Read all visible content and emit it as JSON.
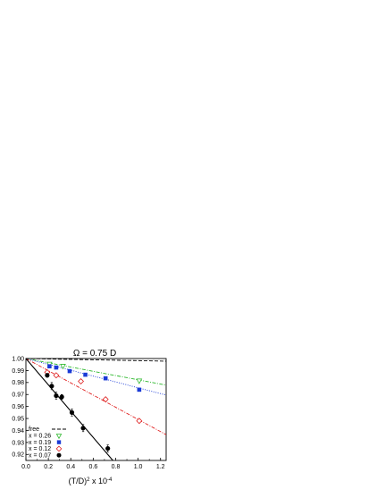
{
  "chart_data": {
    "type": "scatter",
    "title": "Ω = 0.75 D",
    "xlabel": "(T/D)",
    "xlabel_superscript": "2",
    "xlabel_suffix": " x 10",
    "xlabel_suffix_superscript": "-4",
    "ylabel": "",
    "xlim": [
      0.0,
      1.25
    ],
    "ylim": [
      0.915,
      1.0
    ],
    "x_ticks": [
      "0.0",
      "0.2",
      "0.4",
      "0.6",
      "0.8",
      "1.0",
      "1.2"
    ],
    "x_tick_values": [
      0.0,
      0.2,
      0.4,
      0.6,
      0.8,
      1.0,
      1.2
    ],
    "y_ticks": [
      "1.00",
      "0.99",
      "0.98",
      "0.97",
      "0.96",
      "0.95",
      "0.94",
      "0.93",
      "0.92"
    ],
    "y_tick_values": [
      1.0,
      0.99,
      0.98,
      0.97,
      0.96,
      0.95,
      0.94,
      0.93,
      0.92
    ],
    "grid": false,
    "legend_position": "bottom-left",
    "series": [
      {
        "name": "free",
        "marker": "none",
        "color": "#000000",
        "line_style": "dashed",
        "fit": [
          [
            0.0,
            1.0
          ],
          [
            1.25,
            0.9978
          ]
        ],
        "points": []
      },
      {
        "name": "x = 0.26",
        "marker": "triangle-down-open",
        "color": "#2db82d",
        "line_style": "dashdot",
        "fit": [
          [
            0.0,
            1.0
          ],
          [
            1.25,
            0.9778
          ]
        ],
        "points": [
          {
            "x": 0.21,
            "y": 0.9955,
            "err": 0.0008
          },
          {
            "x": 0.33,
            "y": 0.9938,
            "err": 0.0008
          },
          {
            "x": 1.01,
            "y": 0.9815,
            "err": 0.0008
          }
        ]
      },
      {
        "name": "x = 0.19",
        "marker": "square-filled",
        "color": "#1a3ad6",
        "line_style": "dotted",
        "fit": [
          [
            0.0,
            1.0
          ],
          [
            1.25,
            0.9695
          ]
        ],
        "points": [
          {
            "x": 0.21,
            "y": 0.9935,
            "err": 0.0008
          },
          {
            "x": 0.27,
            "y": 0.9925,
            "err": 0.0008
          },
          {
            "x": 0.39,
            "y": 0.9895,
            "err": 0.0008
          },
          {
            "x": 0.53,
            "y": 0.9865,
            "err": 0.0008
          },
          {
            "x": 0.71,
            "y": 0.9835,
            "err": 0.0008
          },
          {
            "x": 1.01,
            "y": 0.974,
            "err": 0.0008
          }
        ]
      },
      {
        "name": "x = 0.12",
        "marker": "diamond-open",
        "color": "#e02020",
        "line_style": "dashdot",
        "fit": [
          [
            0.0,
            1.0
          ],
          [
            1.25,
            0.9365
          ]
        ],
        "points": [
          {
            "x": 0.19,
            "y": 0.9885,
            "err": 0.0015
          },
          {
            "x": 0.27,
            "y": 0.986,
            "err": 0.0015
          },
          {
            "x": 0.49,
            "y": 0.981,
            "err": 0.0015
          },
          {
            "x": 0.71,
            "y": 0.966,
            "err": 0.0015
          },
          {
            "x": 1.01,
            "y": 0.948,
            "err": 0.0015
          }
        ]
      },
      {
        "name": "x = 0.07",
        "marker": "circle-filled",
        "color": "#000000",
        "line_style": "solid",
        "fit": [
          [
            0.0,
            1.0
          ],
          [
            0.775,
            0.915
          ]
        ],
        "points": [
          {
            "x": 0.19,
            "y": 0.986,
            "err": 0.0015
          },
          {
            "x": 0.23,
            "y": 0.977,
            "err": 0.003
          },
          {
            "x": 0.27,
            "y": 0.969,
            "err": 0.003
          },
          {
            "x": 0.32,
            "y": 0.968,
            "err": 0.002
          },
          {
            "x": 0.41,
            "y": 0.955,
            "err": 0.003
          },
          {
            "x": 0.51,
            "y": 0.942,
            "err": 0.003
          },
          {
            "x": 0.73,
            "y": 0.925,
            "err": 0.003
          }
        ]
      }
    ]
  }
}
